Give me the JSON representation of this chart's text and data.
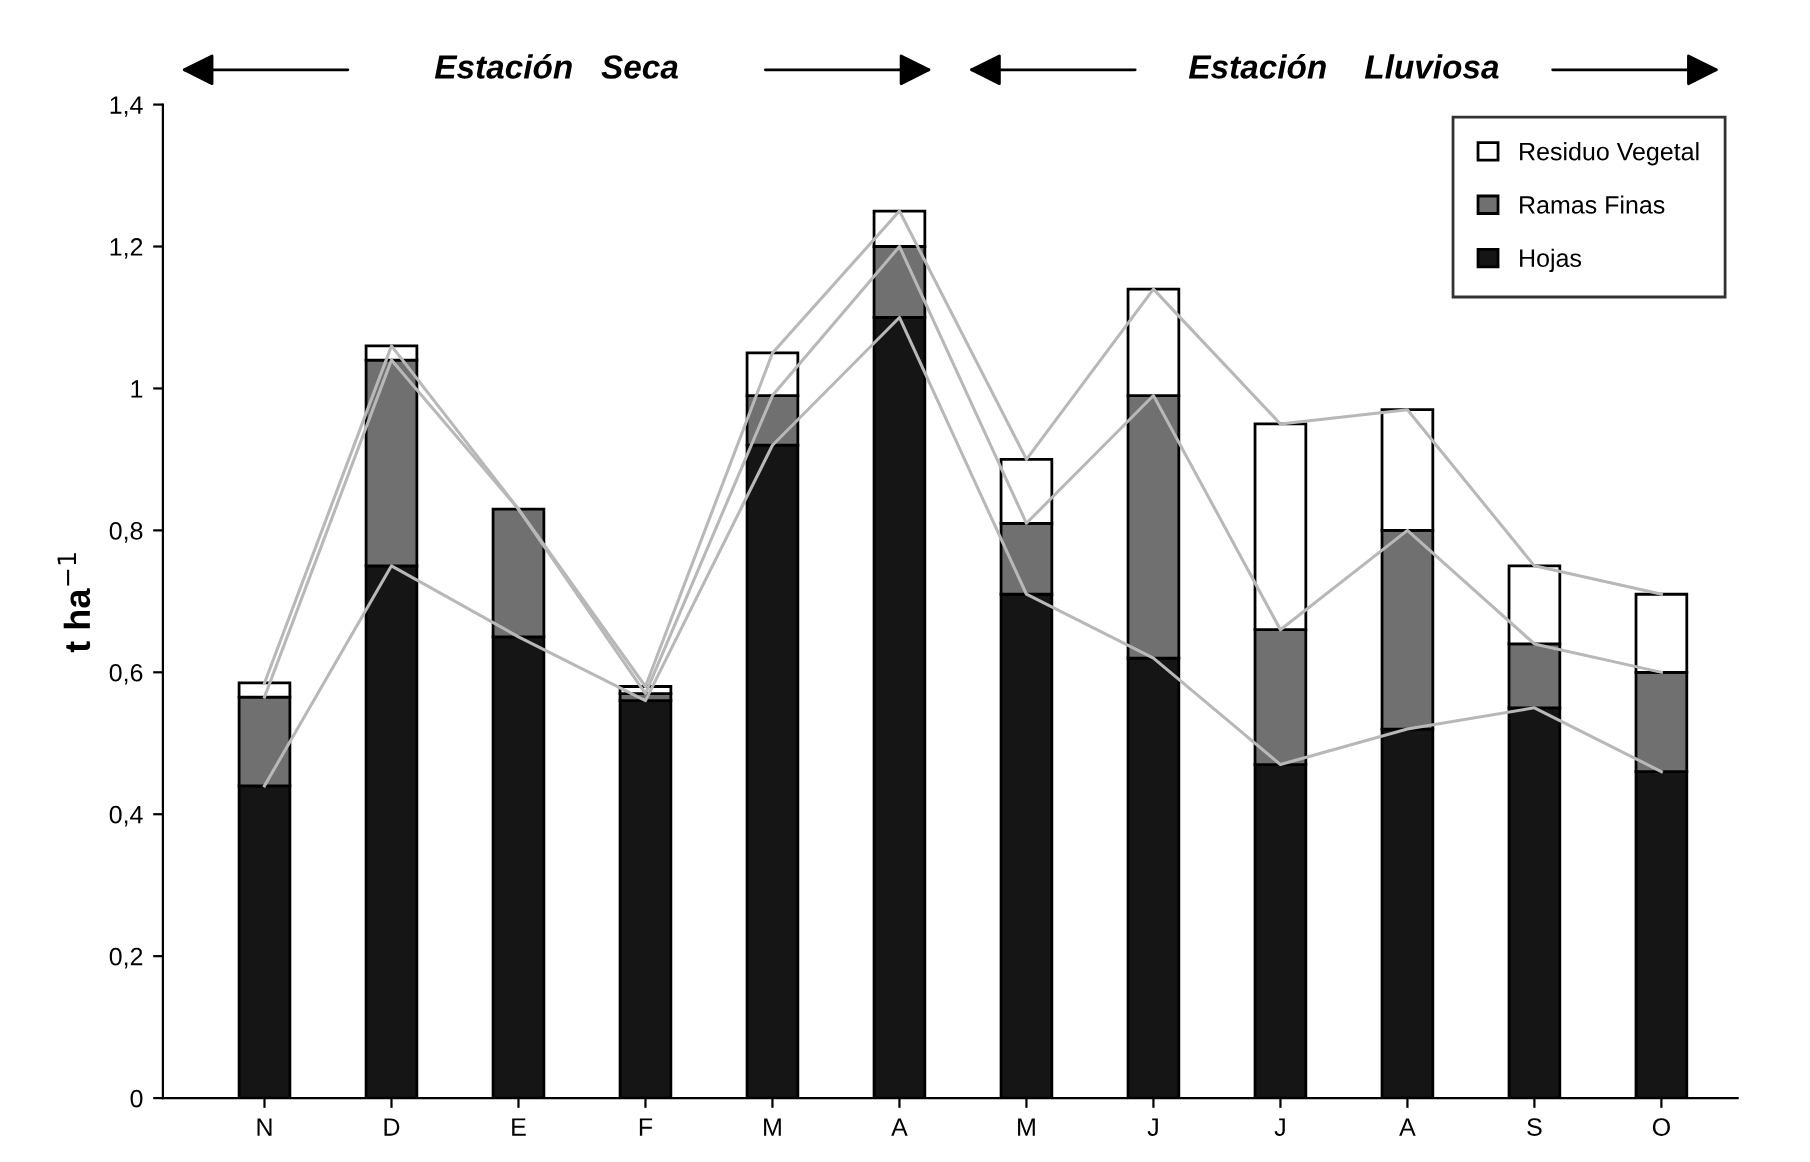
{
  "chart_data": {
    "type": "bar",
    "stacked": true,
    "ylabel": "t ha$^{−1}$",
    "categories": [
      "N",
      "D",
      "E",
      "F",
      "M",
      "A",
      "M",
      "J",
      "J",
      "A",
      "S",
      "O"
    ],
    "series": [
      {
        "name": "Hojas",
        "color": "#151515",
        "values": [
          0.44,
          0.75,
          0.65,
          0.56,
          0.92,
          1.1,
          0.71,
          0.62,
          0.47,
          0.52,
          0.55,
          0.46
        ]
      },
      {
        "name": "Ramas Finas",
        "color": "#707070",
        "values": [
          0.125,
          0.29,
          0.18,
          0.01,
          0.07,
          0.1,
          0.1,
          0.37,
          0.19,
          0.28,
          0.09,
          0.14
        ]
      },
      {
        "name": "Residuo Vegetal",
        "color": "#ffffff",
        "values": [
          0.02,
          0.02,
          null,
          0.01,
          0.06,
          0.05,
          0.09,
          0.15,
          0.29,
          0.17,
          0.11,
          0.11
        ]
      },
      {
        "type": "line",
        "color": "#b8b8b8",
        "values": [
          0.44,
          0.75,
          0.65,
          0.56,
          0.92,
          1.1,
          0.71,
          0.62,
          0.47,
          0.52,
          0.55,
          0.46
        ]
      },
      {
        "type": "line",
        "color": "#b8b8b8",
        "values": [
          0.565,
          1.04,
          0.83,
          0.57,
          0.99,
          1.2,
          0.81,
          0.99,
          0.66,
          0.8,
          0.64,
          0.6
        ]
      },
      {
        "type": "line",
        "color": "#b8b8b8",
        "values": [
          0.585,
          1.06,
          0.83,
          0.58,
          1.05,
          1.25,
          0.9,
          1.14,
          0.95,
          0.97,
          0.75,
          0.71
        ]
      }
    ],
    "ylim": [
      0,
      1.4
    ],
    "yticks": [
      0,
      {
        "value": 0.2,
        "label": "0,2"
      },
      {
        "value": 0.4,
        "label": "0,4"
      },
      {
        "value": 0.6,
        "label": "0,6"
      },
      {
        "value": 0.8,
        "label": "0,8"
      },
      1,
      {
        "value": 1.2,
        "label": "1,2"
      },
      {
        "value": 1.4,
        "label": "1,4"
      }
    ],
    "annotations": [
      "Estación   Seca",
      "Estación    Lluviosa"
    ],
    "legend": "top right",
    "grid": false
  }
}
